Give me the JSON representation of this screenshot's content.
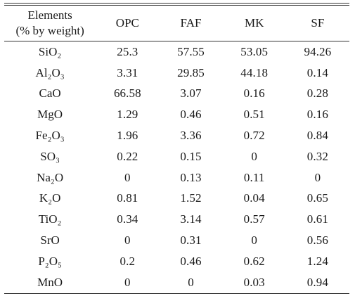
{
  "table": {
    "header": {
      "element_line1": "Elements",
      "element_line2": "(% by weight)",
      "columns": [
        "OPC",
        "FAF",
        "MK",
        "SF"
      ]
    },
    "rows": [
      {
        "element": "SiO₂",
        "values": [
          "25.3",
          "57.55",
          "53.05",
          "94.26"
        ]
      },
      {
        "element": "Al₂O₃",
        "values": [
          "3.31",
          "29.85",
          "44.18",
          "0.14"
        ]
      },
      {
        "element": "CaO",
        "values": [
          "66.58",
          "3.07",
          "0.16",
          "0.28"
        ]
      },
      {
        "element": "MgO",
        "values": [
          "1.29",
          "0.46",
          "0.51",
          "0.16"
        ]
      },
      {
        "element": "Fe₂O₃",
        "values": [
          "1.96",
          "3.36",
          "0.72",
          "0.84"
        ]
      },
      {
        "element": "SO₃",
        "values": [
          "0.22",
          "0.15",
          "0",
          "0.32"
        ]
      },
      {
        "element": "Na₂O",
        "values": [
          "0",
          "0.13",
          "0.11",
          "0"
        ]
      },
      {
        "element": "K₂O",
        "values": [
          "0.81",
          "1.52",
          "0.04",
          "0.65"
        ]
      },
      {
        "element": "TiO₂",
        "values": [
          "0.34",
          "3.14",
          "0.57",
          "0.61"
        ]
      },
      {
        "element": "SrO",
        "values": [
          "0",
          "0.31",
          "0",
          "0.56"
        ]
      },
      {
        "element": "P₂O₅",
        "values": [
          "0.2",
          "0.46",
          "0.62",
          "1.24"
        ]
      },
      {
        "element": "MnO",
        "values": [
          "0",
          "0",
          "0.03",
          "0.94"
        ]
      }
    ]
  }
}
